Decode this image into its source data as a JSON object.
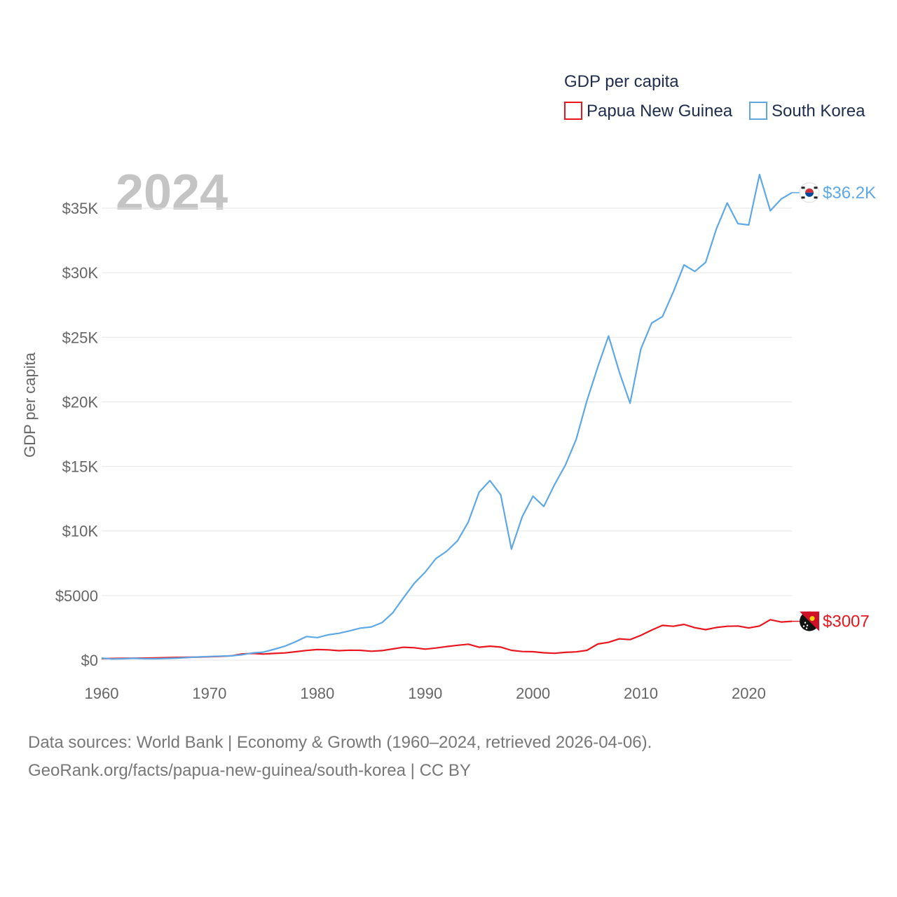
{
  "chart_data": {
    "type": "line",
    "title": "GDP per capita",
    "year_label": "2024",
    "ylabel": "GDP per capita",
    "xlabel": "",
    "xlim": [
      1960,
      2024
    ],
    "ylim": [
      0,
      37500
    ],
    "x_ticks": [
      1960,
      1970,
      1980,
      1990,
      2000,
      2010,
      2020
    ],
    "x_tick_labels": [
      "1960",
      "1970",
      "1980",
      "1990",
      "2000",
      "2010",
      "2020"
    ],
    "y_ticks": [
      0,
      5000,
      10000,
      15000,
      20000,
      25000,
      30000,
      35000
    ],
    "y_tick_labels": [
      "$0",
      "$5000",
      "$10K",
      "$15K",
      "$20K",
      "$25K",
      "$30K",
      "$35K"
    ],
    "grid": true,
    "legend_position": "top-right",
    "x": [
      1960,
      1961,
      1962,
      1963,
      1964,
      1965,
      1966,
      1967,
      1968,
      1969,
      1970,
      1971,
      1972,
      1973,
      1974,
      1975,
      1976,
      1977,
      1978,
      1979,
      1980,
      1981,
      1982,
      1983,
      1984,
      1985,
      1986,
      1987,
      1988,
      1989,
      1990,
      1991,
      1992,
      1993,
      1994,
      1995,
      1996,
      1997,
      1998,
      1999,
      2000,
      2001,
      2002,
      2003,
      2004,
      2005,
      2006,
      2007,
      2008,
      2009,
      2010,
      2011,
      2012,
      2013,
      2014,
      2015,
      2016,
      2017,
      2018,
      2019,
      2020,
      2021,
      2022,
      2023,
      2024
    ],
    "series": [
      {
        "name": "Papua New Guinea",
        "color": "#e8161e",
        "end_label": "$3007",
        "flag_icon": "papua-new-guinea-flag-icon",
        "values": [
          120,
          130,
          140,
          150,
          160,
          170,
          190,
          210,
          220,
          240,
          260,
          290,
          330,
          480,
          520,
          470,
          520,
          560,
          650,
          750,
          820,
          800,
          730,
          770,
          760,
          690,
          740,
          870,
          1000,
          960,
          850,
          940,
          1050,
          1150,
          1230,
          1000,
          1080,
          1010,
          760,
          670,
          650,
          570,
          530,
          600,
          640,
          760,
          1250,
          1380,
          1650,
          1590,
          1920,
          2330,
          2690,
          2620,
          2770,
          2510,
          2360,
          2530,
          2620,
          2640,
          2490,
          2640,
          3130,
          2950,
          3007
        ]
      },
      {
        "name": "South Korea",
        "color": "#5ea8e6",
        "end_label": "$36.2K",
        "flag_icon": "south-korea-flag-icon",
        "values": [
          160,
          90,
          110,
          140,
          110,
          110,
          130,
          160,
          200,
          250,
          280,
          310,
          330,
          410,
          560,
          620,
          840,
          1080,
          1430,
          1830,
          1750,
          1960,
          2080,
          2270,
          2480,
          2570,
          2910,
          3670,
          4840,
          5960,
          6810,
          7870,
          8440,
          9240,
          10700,
          13000,
          13900,
          12800,
          8600,
          11100,
          12700,
          11900,
          13600,
          15100,
          17100,
          20100,
          22700,
          25100,
          22300,
          19900,
          24100,
          26100,
          26600,
          28500,
          30600,
          30100,
          30800,
          33400,
          35400,
          33800,
          33700,
          37600,
          34800,
          35700,
          36200
        ]
      }
    ],
    "legend": {
      "title": "GDP per capita",
      "items": [
        "Papua New Guinea",
        "South Korea"
      ]
    }
  },
  "footer": {
    "line1": "Data sources: World Bank | Economy & Growth (1960–2024, retrieved 2026-04-06).",
    "line2": "GeoRank.org/facts/papua-new-guinea/south-korea | CC BY"
  }
}
